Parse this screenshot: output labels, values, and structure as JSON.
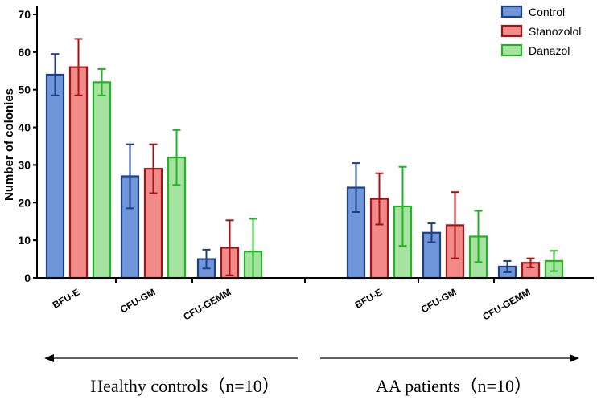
{
  "chart_data": {
    "type": "bar",
    "title": "",
    "xlabel": "",
    "ylabel": "Number of colonies",
    "ylim": [
      0,
      70
    ],
    "yticks": [
      0,
      10,
      20,
      30,
      40,
      50,
      60,
      70
    ],
    "legend_position": "top-right",
    "groups": [
      {
        "label": "Healthy controls（n=10）",
        "categories": [
          "BFU-E",
          "CFU-GM",
          "CFU-GEMM"
        ]
      },
      {
        "label": "AA patients（n=10）",
        "categories": [
          "BFU-E",
          "CFU-GM",
          "CFU-GEMM"
        ]
      }
    ],
    "categories": [
      "BFU-E",
      "CFU-GM",
      "CFU-GEMM",
      "BFU-E",
      "CFU-GM",
      "CFU-GEMM"
    ],
    "series": [
      {
        "name": "Control",
        "fill": "#6e96d8",
        "stroke": "#1e3f8a",
        "values": [
          54,
          27,
          5,
          24,
          12,
          3
        ],
        "errors": [
          5.5,
          8.5,
          2.5,
          6.5,
          2.5,
          1.5
        ]
      },
      {
        "name": "Stanozolol",
        "fill": "#f28a8a",
        "stroke": "#a31515",
        "values": [
          56,
          29,
          8,
          21,
          14,
          4
        ],
        "errors": [
          7.5,
          6.5,
          7.3,
          6.8,
          8.8,
          1.2
        ]
      },
      {
        "name": "Danazol",
        "fill": "#a6e3a0",
        "stroke": "#22b522",
        "values": [
          52,
          32,
          7,
          19,
          11,
          4.5
        ],
        "errors": [
          3.5,
          7.3,
          8.7,
          10.5,
          6.8,
          2.7
        ]
      }
    ]
  }
}
